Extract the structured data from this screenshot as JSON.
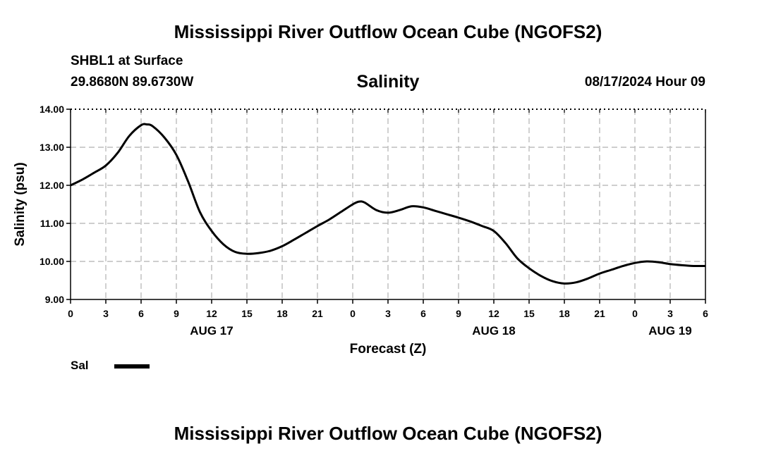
{
  "page_title": "Mississippi River Outflow Ocean Cube (NGOFS2)",
  "footer_title": "Mississippi River Outflow Ocean Cube (NGOFS2)",
  "station": {
    "name_line": "SHBL1 at Surface",
    "coords": "29.8680N  89.6730W",
    "datetime": "08/17/2024 Hour 09"
  },
  "legend": {
    "label": "Sal"
  },
  "chart_data": {
    "type": "line",
    "title": "Salinity",
    "xlabel": "Forecast (Z)",
    "ylabel": "Salinity (psu)",
    "ylim": [
      9.0,
      14.0
    ],
    "yticks": [
      "9.00",
      "10.00",
      "11.00",
      "12.00",
      "13.00",
      "14.00"
    ],
    "xlim": [
      0,
      54
    ],
    "xtick_labels": [
      "0",
      "3",
      "6",
      "9",
      "12",
      "15",
      "18",
      "21",
      "0",
      "3",
      "6",
      "9",
      "12",
      "15",
      "18",
      "21",
      "0",
      "3",
      "6"
    ],
    "day_labels": [
      {
        "label": "AUG 17",
        "hour": 12
      },
      {
        "label": "AUG 18",
        "hour": 36
      },
      {
        "label": "AUG 19",
        "hour": 51
      }
    ],
    "grid": true,
    "series": [
      {
        "name": "Sal",
        "x": [
          0,
          1,
          2,
          3,
          4,
          5,
          6,
          6.5,
          7,
          8,
          9,
          10,
          11,
          12,
          13,
          14,
          15,
          16,
          17,
          18,
          19,
          20,
          21,
          22,
          23,
          24,
          24.5,
          25,
          26,
          27,
          28,
          29,
          30,
          31,
          32,
          33,
          34,
          35,
          36,
          37,
          38,
          39,
          40,
          41,
          42,
          43,
          44,
          45,
          46,
          47,
          48,
          49,
          50,
          51,
          52,
          53,
          54
        ],
        "values": [
          12.0,
          12.15,
          12.33,
          12.52,
          12.85,
          13.3,
          13.58,
          13.6,
          13.55,
          13.25,
          12.8,
          12.1,
          11.3,
          10.8,
          10.45,
          10.25,
          10.2,
          10.22,
          10.28,
          10.4,
          10.57,
          10.75,
          10.93,
          11.1,
          11.3,
          11.5,
          11.57,
          11.55,
          11.35,
          11.28,
          11.35,
          11.45,
          11.42,
          11.33,
          11.24,
          11.15,
          11.05,
          10.93,
          10.8,
          10.48,
          10.08,
          9.82,
          9.62,
          9.48,
          9.42,
          9.45,
          9.55,
          9.68,
          9.78,
          9.88,
          9.96,
          10.0,
          9.98,
          9.93,
          9.9,
          9.88,
          9.88
        ]
      }
    ]
  }
}
